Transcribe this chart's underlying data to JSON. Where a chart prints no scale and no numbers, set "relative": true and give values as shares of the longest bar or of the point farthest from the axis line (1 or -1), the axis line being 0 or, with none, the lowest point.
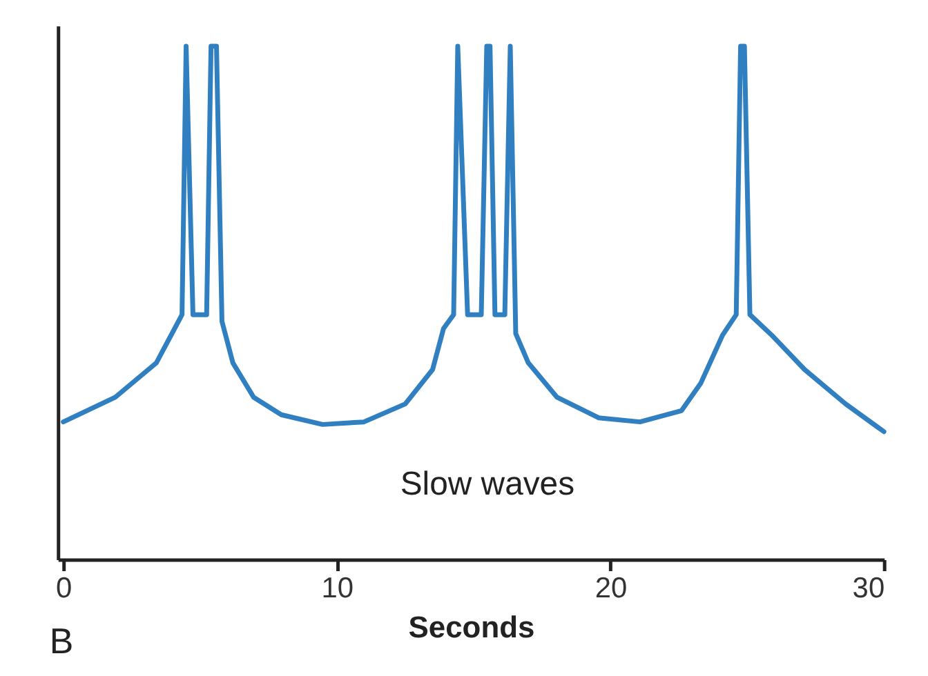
{
  "chart_data": {
    "type": "line",
    "relative": true,
    "xlabel": "Seconds",
    "xlim": [
      -0.2,
      30
    ],
    "xticks": [
      0,
      10,
      20,
      30
    ],
    "grid": false,
    "marker": "none",
    "line_style": "solid",
    "annotations": [
      "Slow waves",
      "B"
    ],
    "x": [
      0,
      1.9,
      3.4,
      4.34,
      4.49,
      4.74,
      5.24,
      5.4,
      5.6,
      5.8,
      6.2,
      6.96,
      7.97,
      9.48,
      10.99,
      12.5,
      13.5,
      13.9,
      14.27,
      14.42,
      14.78,
      15.28,
      15.48,
      15.6,
      15.78,
      16.14,
      16.34,
      16.54,
      17.0,
      18.05,
      19.57,
      21.08,
      22.6,
      23.3,
      24.1,
      24.6,
      24.76,
      24.9,
      25.1,
      25.9,
      27.1,
      28.6,
      30
    ],
    "series": [
      {
        "color": "#2f7fc1",
        "values": [
          0.268,
          0.316,
          0.383,
          0.477,
          1.0,
          0.477,
          0.477,
          1.0,
          1.0,
          0.464,
          0.383,
          0.316,
          0.282,
          0.263,
          0.268,
          0.303,
          0.37,
          0.45,
          0.477,
          1.0,
          0.477,
          0.477,
          1.0,
          1.0,
          0.477,
          0.477,
          1.0,
          0.44,
          0.383,
          0.316,
          0.276,
          0.268,
          0.29,
          0.343,
          0.437,
          0.477,
          1.0,
          1.0,
          0.477,
          0.437,
          0.37,
          0.303,
          0.249
        ]
      }
    ]
  }
}
